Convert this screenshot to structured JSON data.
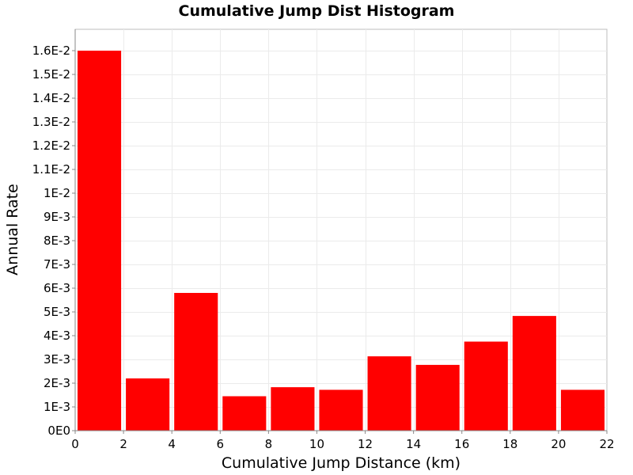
{
  "chart_data": {
    "type": "bar",
    "title": "Cumulative Jump Dist Histogram",
    "xlabel": "Cumulative Jump Distance (km)",
    "ylabel": "Annual Rate",
    "xlim": [
      0,
      22
    ],
    "ylim": [
      0,
      0.0169
    ],
    "bar_width": 2,
    "x": [
      1,
      3,
      5,
      7,
      9,
      11,
      13,
      15,
      17,
      19,
      21
    ],
    "values": [
      0.016,
      0.0022,
      0.0058,
      0.00145,
      0.00183,
      0.00172,
      0.00313,
      0.00277,
      0.00375,
      0.00483,
      0.00172
    ],
    "xticks": [
      0,
      2,
      4,
      6,
      8,
      10,
      12,
      14,
      16,
      18,
      20,
      22
    ],
    "xtick_labels": [
      "0",
      "2",
      "4",
      "6",
      "8",
      "10",
      "12",
      "14",
      "16",
      "18",
      "20",
      "22"
    ],
    "yticks": [
      0,
      0.001,
      0.002,
      0.003,
      0.004,
      0.005,
      0.006,
      0.007,
      0.008,
      0.009,
      0.01,
      0.011,
      0.012,
      0.013,
      0.014,
      0.015,
      0.016
    ],
    "ytick_labels": [
      "0E0",
      "1E-3",
      "2E-3",
      "3E-3",
      "4E-3",
      "5E-3",
      "6E-3",
      "7E-3",
      "8E-3",
      "9E-3",
      "1E-2",
      "1.1E-2",
      "1.2E-2",
      "1.3E-2",
      "1.4E-2",
      "1.5E-2",
      "1.6E-2"
    ],
    "grid": true,
    "bar_color": "#ff0000",
    "grid_color": "#ebebeb",
    "legend": "none"
  }
}
